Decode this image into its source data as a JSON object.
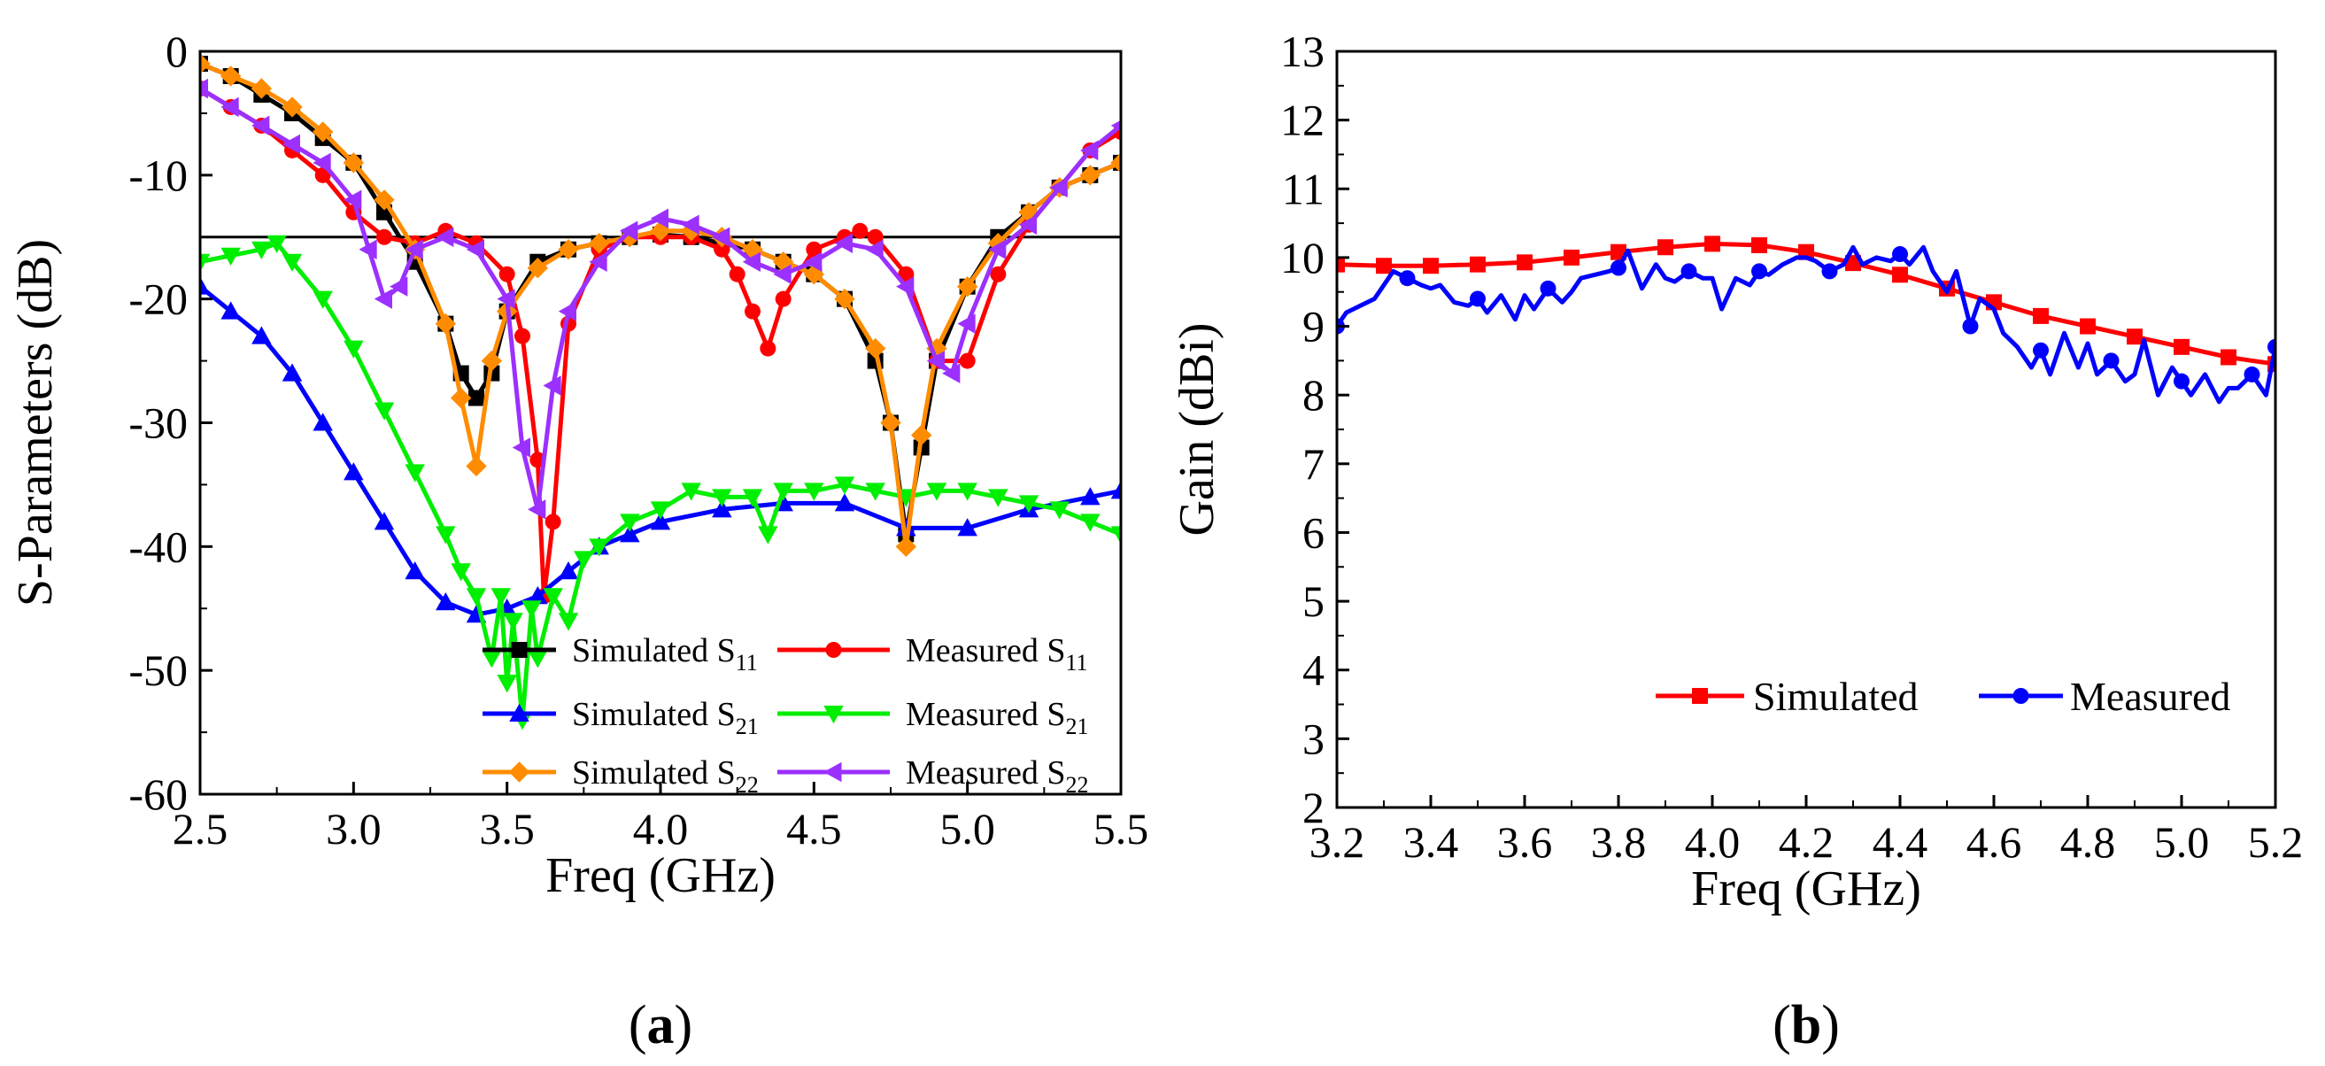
{
  "chart_data": [
    {
      "type": "line",
      "panel_label": "a",
      "xlabel": "Freq (GHz)",
      "ylabel": "S-Parameters (dB)",
      "xlim": [
        2.5,
        5.5
      ],
      "ylim": [
        -60,
        0
      ],
      "xticks": [
        "2.5",
        "3.0",
        "3.5",
        "4.0",
        "4.5",
        "5.0",
        "5.5"
      ],
      "yticks": [
        "0",
        "-10",
        "-20",
        "-30",
        "-40",
        "-50",
        "-60"
      ],
      "reference_line": -15,
      "legend_position": "bottom-right",
      "series": [
        {
          "name": "Simulated S11",
          "base": "Simulated S",
          "sub": "11",
          "color": "#000000",
          "marker": "square",
          "x": [
            2.5,
            2.6,
            2.7,
            2.8,
            2.9,
            3.0,
            3.1,
            3.2,
            3.3,
            3.35,
            3.4,
            3.45,
            3.5,
            3.6,
            3.7,
            3.8,
            3.9,
            4.0,
            4.1,
            4.2,
            4.3,
            4.4,
            4.5,
            4.6,
            4.7,
            4.75,
            4.8,
            4.85,
            4.9,
            5.0,
            5.1,
            5.2,
            5.3,
            5.4,
            5.5
          ],
          "y": [
            -1,
            -2,
            -3.5,
            -5,
            -7,
            -9,
            -13,
            -17,
            -22,
            -26,
            -28,
            -26,
            -21,
            -17,
            -16,
            -15.5,
            -15,
            -14.8,
            -15,
            -15.5,
            -16,
            -17,
            -18,
            -20,
            -25,
            -30,
            -39,
            -32,
            -25,
            -19,
            -15,
            -13,
            -11,
            -10,
            -9
          ]
        },
        {
          "name": "Measured S11",
          "base": "Measured S",
          "sub": "11",
          "color": "#ff0000",
          "marker": "circle",
          "x": [
            2.5,
            2.6,
            2.7,
            2.8,
            2.9,
            3.0,
            3.1,
            3.2,
            3.3,
            3.4,
            3.5,
            3.55,
            3.6,
            3.62,
            3.65,
            3.7,
            3.8,
            3.9,
            4.0,
            4.1,
            4.2,
            4.25,
            4.3,
            4.35,
            4.4,
            4.5,
            4.6,
            4.65,
            4.7,
            4.8,
            4.9,
            5.0,
            5.1,
            5.2,
            5.3,
            5.4,
            5.5
          ],
          "y": [
            -3,
            -4.5,
            -6,
            -8,
            -10,
            -13,
            -15,
            -15.5,
            -14.5,
            -15.5,
            -18,
            -23,
            -33,
            -44,
            -38,
            -22,
            -16,
            -15,
            -15,
            -15,
            -16,
            -18,
            -21,
            -24,
            -20,
            -16,
            -15,
            -14.5,
            -15,
            -18,
            -25,
            -25,
            -18,
            -14,
            -11,
            -8,
            -6.5
          ]
        },
        {
          "name": "Simulated S21",
          "base": "Simulated S",
          "sub": "21",
          "color": "#0000ff",
          "marker": "triangle-up",
          "x": [
            2.5,
            2.6,
            2.7,
            2.8,
            2.9,
            3.0,
            3.1,
            3.2,
            3.3,
            3.4,
            3.5,
            3.6,
            3.7,
            3.8,
            3.9,
            4.0,
            4.2,
            4.4,
            4.6,
            4.8,
            5.0,
            5.2,
            5.4,
            5.5
          ],
          "y": [
            -19,
            -21,
            -23,
            -26,
            -30,
            -34,
            -38,
            -42,
            -44.5,
            -45.5,
            -45,
            -44,
            -42,
            -40,
            -39,
            -38,
            -37,
            -36.5,
            -36.5,
            -38.5,
            -38.5,
            -37,
            -36,
            -35.5
          ]
        },
        {
          "name": "Measured S21",
          "base": "Measured S",
          "sub": "21",
          "color": "#00ee00",
          "marker": "triangle-down",
          "x": [
            2.5,
            2.6,
            2.7,
            2.75,
            2.8,
            2.9,
            3.0,
            3.1,
            3.2,
            3.3,
            3.35,
            3.4,
            3.45,
            3.48,
            3.5,
            3.52,
            3.55,
            3.58,
            3.6,
            3.65,
            3.7,
            3.75,
            3.8,
            3.9,
            4.0,
            4.1,
            4.2,
            4.3,
            4.35,
            4.4,
            4.5,
            4.6,
            4.7,
            4.8,
            4.9,
            5.0,
            5.1,
            5.2,
            5.3,
            5.4,
            5.5
          ],
          "y": [
            -17,
            -16.5,
            -16,
            -15.5,
            -17,
            -20,
            -24,
            -29,
            -34,
            -39,
            -42,
            -44,
            -49,
            -44,
            -51,
            -46,
            -54,
            -45,
            -49,
            -44,
            -46,
            -41,
            -40,
            -38,
            -37,
            -35.5,
            -36,
            -36,
            -39,
            -35.5,
            -35.5,
            -35,
            -35.5,
            -36,
            -35.5,
            -35.5,
            -36,
            -36.5,
            -37,
            -38,
            -39
          ]
        },
        {
          "name": "Simulated S22",
          "base": "Simulated S",
          "sub": "22",
          "color": "#ff8c00",
          "marker": "diamond",
          "x": [
            2.5,
            2.6,
            2.7,
            2.8,
            2.9,
            3.0,
            3.1,
            3.2,
            3.3,
            3.35,
            3.4,
            3.45,
            3.5,
            3.6,
            3.7,
            3.8,
            3.9,
            4.0,
            4.1,
            4.2,
            4.3,
            4.4,
            4.5,
            4.6,
            4.7,
            4.75,
            4.8,
            4.85,
            4.9,
            5.0,
            5.1,
            5.2,
            5.3,
            5.4,
            5.5
          ],
          "y": [
            -1,
            -2,
            -3,
            -4.5,
            -6.5,
            -9,
            -12,
            -16,
            -22,
            -28,
            -33.5,
            -25,
            -21,
            -17.5,
            -16,
            -15.5,
            -15,
            -14.5,
            -14.5,
            -15,
            -16,
            -17,
            -18,
            -20,
            -24,
            -30,
            -40,
            -31,
            -24,
            -19,
            -15.5,
            -13,
            -11,
            -10,
            -9
          ]
        },
        {
          "name": "Measured S22",
          "base": "Measured S",
          "sub": "22",
          "color": "#9b30ff",
          "marker": "triangle-left",
          "x": [
            2.5,
            2.6,
            2.7,
            2.8,
            2.9,
            3.0,
            3.05,
            3.1,
            3.15,
            3.2,
            3.3,
            3.4,
            3.5,
            3.55,
            3.6,
            3.65,
            3.7,
            3.8,
            3.9,
            4.0,
            4.1,
            4.2,
            4.3,
            4.4,
            4.5,
            4.6,
            4.7,
            4.8,
            4.9,
            4.95,
            5.0,
            5.1,
            5.2,
            5.3,
            5.4,
            5.5
          ],
          "y": [
            -3,
            -4.5,
            -6,
            -7.5,
            -9,
            -12,
            -16,
            -20,
            -19,
            -16,
            -15,
            -16,
            -20,
            -32,
            -37,
            -27,
            -21,
            -17,
            -14.5,
            -13.5,
            -14,
            -15,
            -17,
            -18,
            -17,
            -15.5,
            -16,
            -19,
            -25,
            -26,
            -22,
            -16,
            -14,
            -11,
            -8,
            -6
          ]
        }
      ]
    },
    {
      "type": "line",
      "panel_label": "b",
      "xlabel": "Freq (GHz)",
      "ylabel": "Gain (dBi)",
      "xlim": [
        3.2,
        5.2
      ],
      "ylim": [
        2,
        13
      ],
      "xticks": [
        "3.2",
        "3.4",
        "3.6",
        "3.8",
        "4.0",
        "4.2",
        "4.4",
        "4.6",
        "4.8",
        "5.0",
        "5.2"
      ],
      "yticks": [
        "2",
        "3",
        "4",
        "5",
        "6",
        "7",
        "8",
        "9",
        "10",
        "11",
        "12",
        "13"
      ],
      "legend_position": "lower-right",
      "series": [
        {
          "name": "Simulated",
          "color": "#ff0000",
          "marker": "square",
          "x": [
            3.2,
            3.3,
            3.4,
            3.5,
            3.6,
            3.7,
            3.8,
            3.9,
            4.0,
            4.1,
            4.2,
            4.3,
            4.4,
            4.5,
            4.6,
            4.7,
            4.8,
            4.9,
            5.0,
            5.1,
            5.2
          ],
          "y": [
            9.9,
            9.88,
            9.88,
            9.9,
            9.93,
            10.0,
            10.08,
            10.15,
            10.2,
            10.18,
            10.08,
            9.92,
            9.75,
            9.55,
            9.35,
            9.15,
            9.0,
            8.85,
            8.7,
            8.55,
            8.45
          ]
        },
        {
          "name": "Measured",
          "color": "#0000ff",
          "marker": "circle",
          "x": [
            3.2,
            3.22,
            3.25,
            3.28,
            3.3,
            3.32,
            3.35,
            3.38,
            3.4,
            3.42,
            3.45,
            3.48,
            3.5,
            3.52,
            3.55,
            3.58,
            3.6,
            3.62,
            3.65,
            3.68,
            3.7,
            3.72,
            3.75,
            3.78,
            3.8,
            3.82,
            3.85,
            3.88,
            3.9,
            3.92,
            3.95,
            3.98,
            4.0,
            4.02,
            4.05,
            4.08,
            4.1,
            4.12,
            4.15,
            4.18,
            4.2,
            4.22,
            4.25,
            4.28,
            4.3,
            4.32,
            4.35,
            4.38,
            4.4,
            4.42,
            4.45,
            4.47,
            4.5,
            4.52,
            4.55,
            4.57,
            4.6,
            4.62,
            4.65,
            4.68,
            4.7,
            4.72,
            4.75,
            4.78,
            4.8,
            4.82,
            4.85,
            4.88,
            4.9,
            4.92,
            4.95,
            4.98,
            5.0,
            5.02,
            5.05,
            5.08,
            5.1,
            5.12,
            5.15,
            5.18,
            5.2
          ],
          "y": [
            9.0,
            9.2,
            9.3,
            9.4,
            9.6,
            9.8,
            9.7,
            9.6,
            9.55,
            9.6,
            9.35,
            9.3,
            9.4,
            9.2,
            9.45,
            9.1,
            9.45,
            9.25,
            9.55,
            9.35,
            9.5,
            9.7,
            9.75,
            9.8,
            9.85,
            10.1,
            9.55,
            9.9,
            9.7,
            9.65,
            9.8,
            9.7,
            9.7,
            9.25,
            9.7,
            9.6,
            9.8,
            9.75,
            9.9,
            10.0,
            10.0,
            9.95,
            9.8,
            9.9,
            10.15,
            9.9,
            10.0,
            9.95,
            10.05,
            9.9,
            10.15,
            9.8,
            9.5,
            9.8,
            9.0,
            9.4,
            9.25,
            8.9,
            8.7,
            8.4,
            8.65,
            8.3,
            8.9,
            8.4,
            8.75,
            8.3,
            8.5,
            8.2,
            8.3,
            8.8,
            8.0,
            8.4,
            8.2,
            8.0,
            8.3,
            7.9,
            8.1,
            8.1,
            8.3,
            8.0,
            8.7
          ]
        }
      ]
    }
  ]
}
